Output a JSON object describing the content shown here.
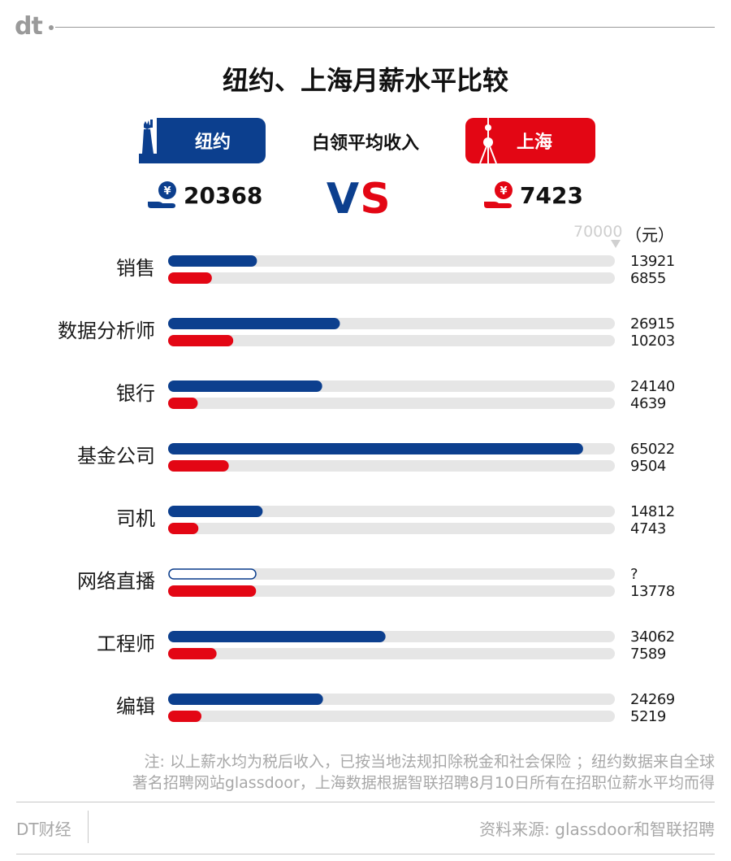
{
  "brand": {
    "logo": "dt"
  },
  "title": "纽约、上海月薪水平比较",
  "header": {
    "city_a": "纽约",
    "city_b": "上海",
    "middle_label": "白领平均收入",
    "vs": "VS",
    "avg_a": "20368",
    "avg_b": "7423"
  },
  "scale": {
    "max_label": "70000",
    "unit": "（元）"
  },
  "colors": {
    "ny": "#0c3f8e",
    "sh": "#e30614",
    "track": "#e6e6e6"
  },
  "chart_data": {
    "type": "bar",
    "orientation": "horizontal",
    "xlim": [
      0,
      70000
    ],
    "unit": "元",
    "categories": [
      "销售",
      "数据分析师",
      "银行",
      "基金公司",
      "司机",
      "网络直播",
      "工程师",
      "编辑"
    ],
    "series": [
      {
        "name": "纽约",
        "values": [
          13921,
          26915,
          24140,
          65022,
          14812,
          null,
          34062,
          24269
        ],
        "labels": [
          "13921",
          "26915",
          "24140",
          "65022",
          "14812",
          "?",
          "34062",
          "24269"
        ]
      },
      {
        "name": "上海",
        "values": [
          6855,
          10203,
          4639,
          9504,
          4743,
          13778,
          7589,
          5219
        ],
        "labels": [
          "6855",
          "10203",
          "4639",
          "9504",
          "4743",
          "13778",
          "7589",
          "5219"
        ]
      }
    ]
  },
  "note": {
    "line1": "注: 以上薪水均为税后收入，已按当地法规扣除税金和社会保险 ；纽约数据来自全球",
    "line2": "著名招聘网站glassdoor，上海数据根据智联招聘8月10日所有在招职位薪水平均而得"
  },
  "footer": {
    "left": "DT财经",
    "right": "资料来源: glassdoor和智联招聘"
  }
}
